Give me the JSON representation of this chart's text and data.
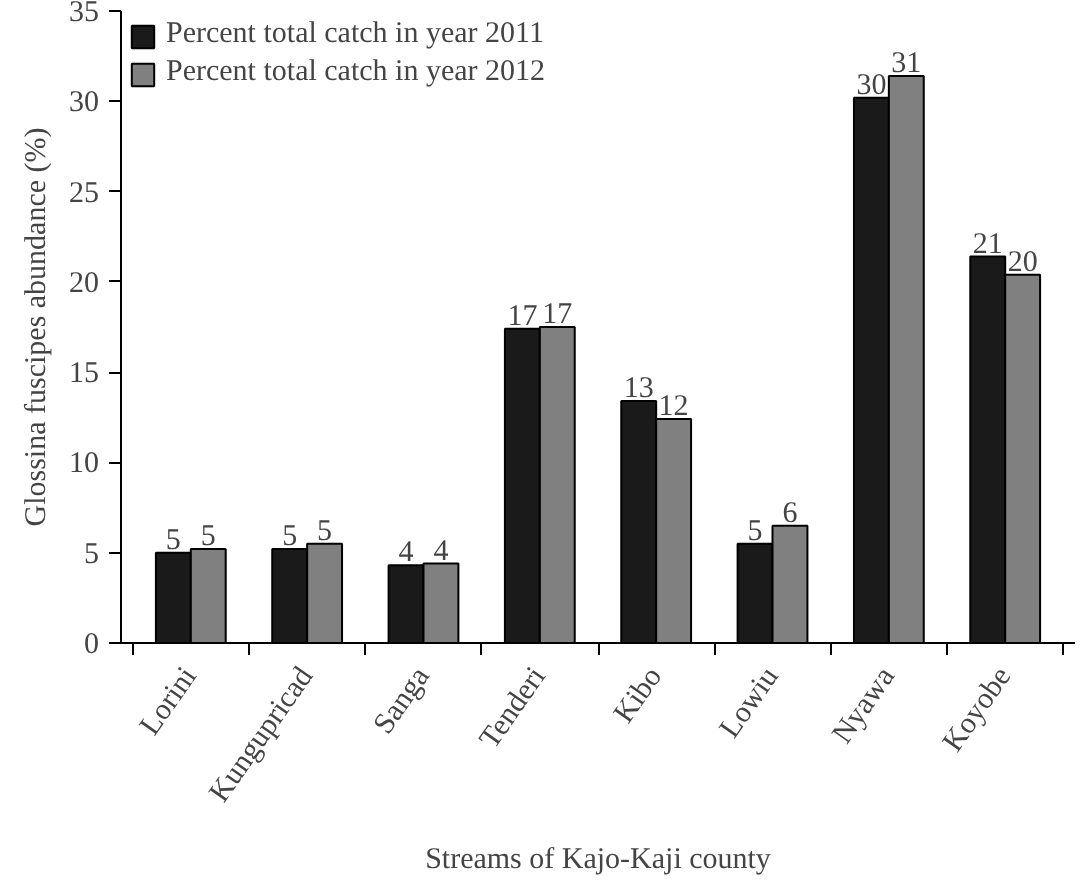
{
  "chart_data": {
    "type": "bar",
    "xlabel": "Streams of Kajo-Kaji county",
    "ylabel": "Glossina fuscipes abundance (%)",
    "categories": [
      "Lorini",
      "Kungupricad",
      "Sanga",
      "Tenderi",
      "Kibo",
      "Lowiu",
      "Nyawa",
      "Koyobe"
    ],
    "series": [
      {
        "name": "Percent total catch in year 2011",
        "color": "#1a1a1a",
        "values": [
          5.0,
          5.2,
          4.3,
          17.4,
          13.4,
          5.5,
          30.2,
          21.4
        ],
        "value_labels": [
          "5",
          "5",
          "4",
          "17",
          "13",
          "5",
          "30",
          "21"
        ]
      },
      {
        "name": "Percent total catch in year 2012",
        "color": "#808080",
        "values": [
          5.2,
          5.5,
          4.4,
          17.5,
          12.4,
          6.5,
          31.4,
          20.4
        ],
        "value_labels": [
          "5",
          "5",
          "4",
          "17",
          "12",
          "6",
          "31",
          "20"
        ]
      }
    ],
    "ylim": [
      0,
      35
    ],
    "yticks": [
      0,
      5,
      10,
      15,
      20,
      25,
      30,
      35
    ],
    "grid": false,
    "legend": "top left"
  }
}
